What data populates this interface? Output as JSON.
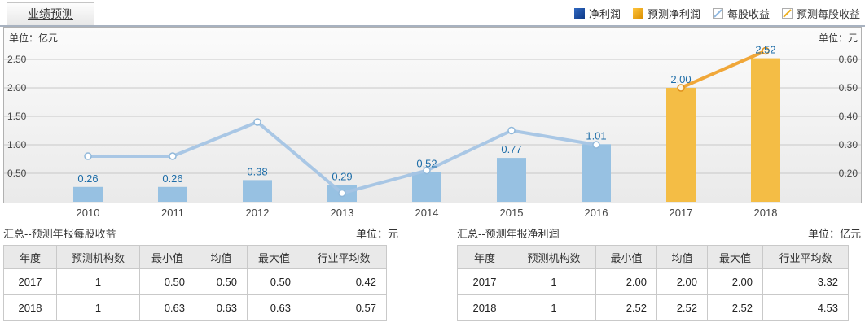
{
  "tab": {
    "label": "业绩预测"
  },
  "legend": [
    {
      "key": "net-profit",
      "label": "净利润",
      "swatch": "solid-blue"
    },
    {
      "key": "forecast-net-profit",
      "label": "预测净利润",
      "swatch": "solid-orange"
    },
    {
      "key": "eps",
      "label": "每股收益",
      "swatch": "diag-blue",
      "line_color": "#8fb8e0"
    },
    {
      "key": "forecast-eps",
      "label": "预测每股收益",
      "swatch": "diag-orange",
      "line_color": "#eeb020"
    }
  ],
  "chart": {
    "left_unit": "单位：亿元",
    "right_unit": "单位：元"
  },
  "chart_data": {
    "type": "bar+line",
    "dual_axis": true,
    "categories": [
      "2010",
      "2011",
      "2012",
      "2013",
      "2014",
      "2015",
      "2016",
      "2017",
      "2018"
    ],
    "series": [
      {
        "key": "net-profit",
        "name": "净利润",
        "type": "bar",
        "axis": "left",
        "color": "#97c1e2",
        "values": [
          0.26,
          0.26,
          0.38,
          0.29,
          0.52,
          0.77,
          1.01,
          null,
          null
        ],
        "labels": [
          "0.26",
          "0.26",
          "0.38",
          "0.29",
          "0.52",
          "0.77",
          "1.01",
          null,
          null
        ]
      },
      {
        "key": "forecast-net-profit",
        "name": "预测净利润",
        "type": "bar",
        "axis": "left",
        "color": "#f4bd45",
        "values": [
          null,
          null,
          null,
          null,
          null,
          null,
          null,
          2.0,
          2.52
        ],
        "labels": [
          null,
          null,
          null,
          null,
          null,
          null,
          null,
          "2.00",
          "2.52"
        ]
      },
      {
        "key": "eps",
        "name": "每股收益",
        "type": "line",
        "axis": "right",
        "color": "#a4c4e4",
        "marker_fill": "#ffffff",
        "marker_stroke": "#90b8da",
        "values": [
          0.26,
          0.26,
          0.38,
          0.13,
          0.21,
          0.35,
          0.3,
          null,
          null
        ]
      },
      {
        "key": "forecast-eps",
        "name": "预测每股收益",
        "type": "line",
        "axis": "right",
        "color": "#efa22e",
        "marker_fill": "#fdf3dc",
        "marker_stroke": "#e09018",
        "values": [
          null,
          null,
          null,
          null,
          null,
          null,
          null,
          0.5,
          0.63
        ]
      }
    ],
    "left_axis": {
      "unit": "亿元",
      "ticks": [
        "2.50",
        "2.00",
        "1.50",
        "1.00",
        "0.50"
      ],
      "min": 0.0,
      "tick_step": 0.5
    },
    "right_axis": {
      "unit": "元",
      "ticks": [
        "0.60",
        "0.50",
        "0.40",
        "0.30",
        "0.20"
      ],
      "min": 0.1,
      "tick_step": 0.1
    },
    "bar_label_color": "#1d6da8",
    "grid": true,
    "legend_position": "top-right",
    "title": "业绩预测"
  },
  "tables": [
    {
      "key": "forecast-eps-summary",
      "title": "汇总--预测年报每股收益",
      "unit": "单位：元",
      "headers": [
        "年度",
        "预测机构数",
        "最小值",
        "均值",
        "最大值",
        "行业平均数"
      ],
      "rows": [
        [
          "2017",
          "1",
          "0.50",
          "0.50",
          "0.50",
          "0.42"
        ],
        [
          "2018",
          "1",
          "0.63",
          "0.63",
          "0.63",
          "0.57"
        ]
      ]
    },
    {
      "key": "forecast-net-profit-summary",
      "title": "汇总--预测年报净利润",
      "unit": "单位：亿元",
      "headers": [
        "年度",
        "预测机构数",
        "最小值",
        "均值",
        "最大值",
        "行业平均数"
      ],
      "rows": [
        [
          "2017",
          "1",
          "2.00",
          "2.00",
          "2.00",
          "3.32"
        ],
        [
          "2018",
          "1",
          "2.52",
          "2.52",
          "2.52",
          "4.53"
        ]
      ]
    }
  ]
}
